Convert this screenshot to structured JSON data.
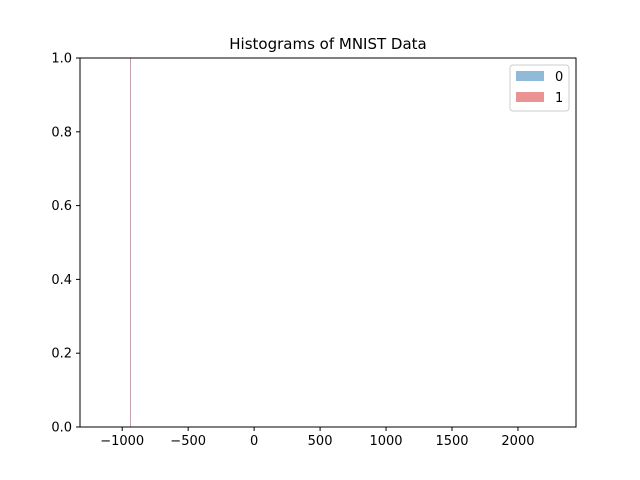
{
  "chart_data": {
    "type": "histogram",
    "title": "Histograms of MNIST Data",
    "xlabel": "",
    "ylabel": "",
    "xlim": [
      -1320,
      2440
    ],
    "ylim": [
      0,
      1.0
    ],
    "xticks": [
      -1000,
      -500,
      0,
      500,
      1000,
      1500,
      2000
    ],
    "xtick_labels": [
      "−1000",
      "−500",
      "0",
      "500",
      "1000",
      "1500",
      "2000"
    ],
    "yticks": [
      0.0,
      0.2,
      0.4,
      0.6,
      0.8,
      1.0
    ],
    "ytick_labels": [
      "0.0",
      "0.2",
      "0.4",
      "0.6",
      "0.8",
      "1.0"
    ],
    "grid": false,
    "legend_position": "top-right",
    "series": [
      {
        "name": "0",
        "color": "#1f77b4",
        "opacity": 0.5,
        "bins": [
          {
            "x0": -940,
            "x1": -938,
            "height": 1.0
          }
        ]
      },
      {
        "name": "1",
        "color": "#d62728",
        "opacity": 0.5,
        "bins": [
          {
            "x0": -940,
            "x1": -938,
            "height": 1.0
          }
        ]
      }
    ]
  }
}
